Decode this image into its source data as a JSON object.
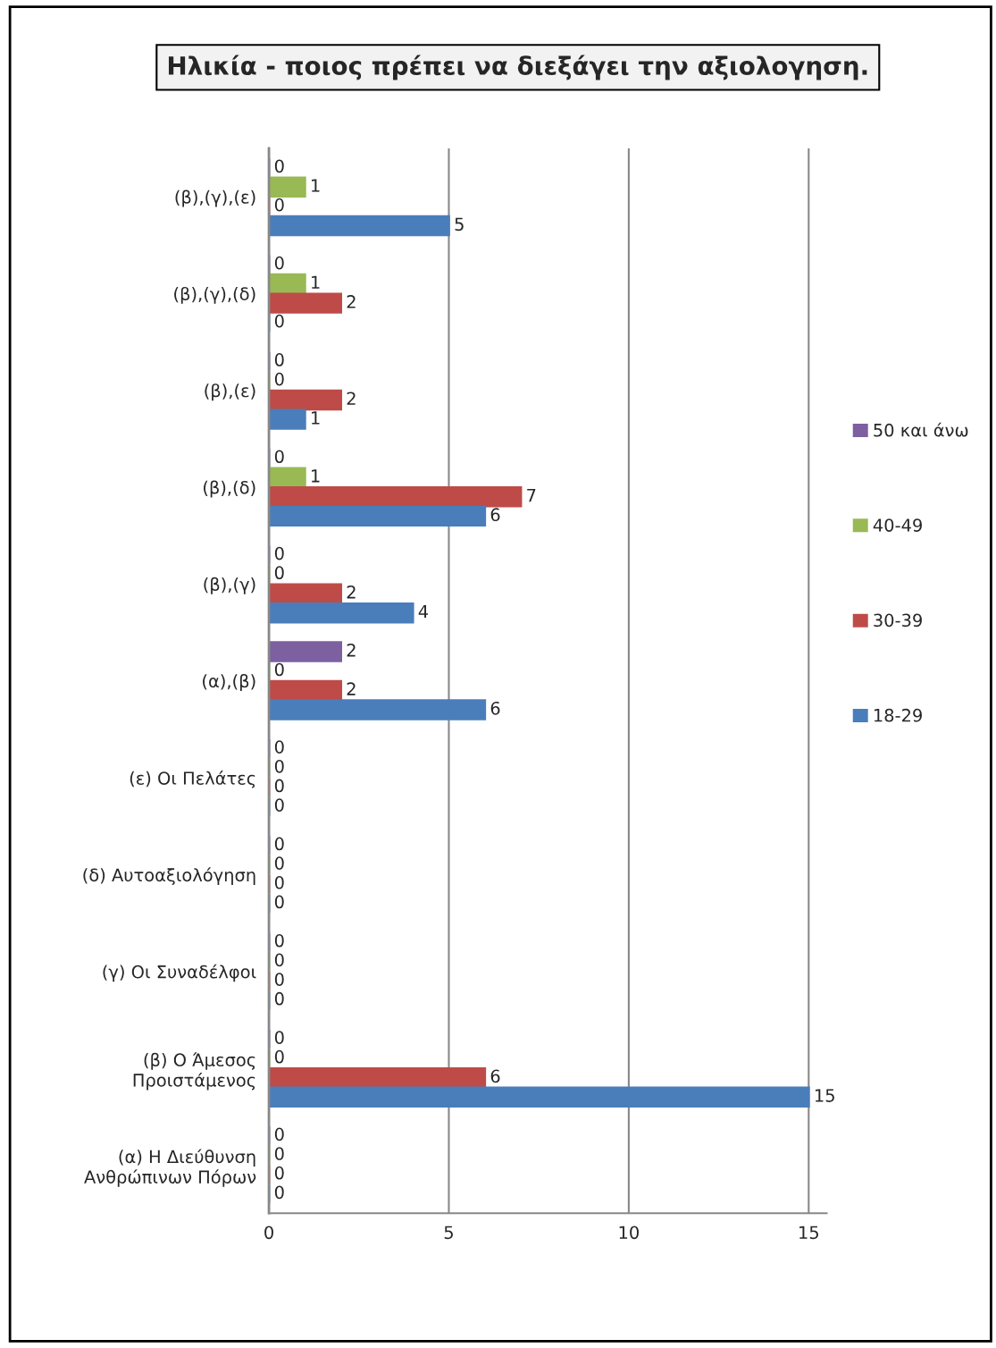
{
  "chart_data": {
    "type": "bar",
    "orientation": "horizontal",
    "title": "Ηλικία - ποιος πρέπει να διεξάγει την αξιολογηση.",
    "categories": [
      "(β),(γ),(ε)",
      "(β),(γ),(δ)",
      "(β),(ε)",
      "(β),(δ)",
      "(β),(γ)",
      "(α),(β)",
      "(ε) Οι Πελάτες",
      "(δ) Αυτοαξιολόγηση",
      "(γ) Οι Συναδέλφοι",
      "(β) Ο Άμεσος\nΠροιστάμενος",
      "(α) Η Διεύθυνση\nΑνθρώπινων Πόρων"
    ],
    "series": [
      {
        "name": "50 και άνω",
        "color": "#7d60a0",
        "values": [
          0,
          0,
          0,
          0,
          0,
          2,
          0,
          0,
          0,
          0,
          0
        ]
      },
      {
        "name": "40-49",
        "color": "#98b954",
        "values": [
          1,
          1,
          0,
          1,
          0,
          0,
          0,
          0,
          0,
          0,
          0
        ]
      },
      {
        "name": "30-39",
        "color": "#be4b48",
        "values": [
          0,
          2,
          2,
          7,
          2,
          2,
          0,
          0,
          0,
          6,
          0
        ]
      },
      {
        "name": "18-29",
        "color": "#4a7ebb",
        "values": [
          5,
          0,
          1,
          6,
          4,
          6,
          0,
          0,
          0,
          15,
          0
        ]
      }
    ],
    "xlim": [
      0,
      15.5
    ],
    "xticks": [
      0,
      5,
      10,
      15
    ],
    "grid": "x",
    "data_labels": true,
    "legend": "right"
  }
}
